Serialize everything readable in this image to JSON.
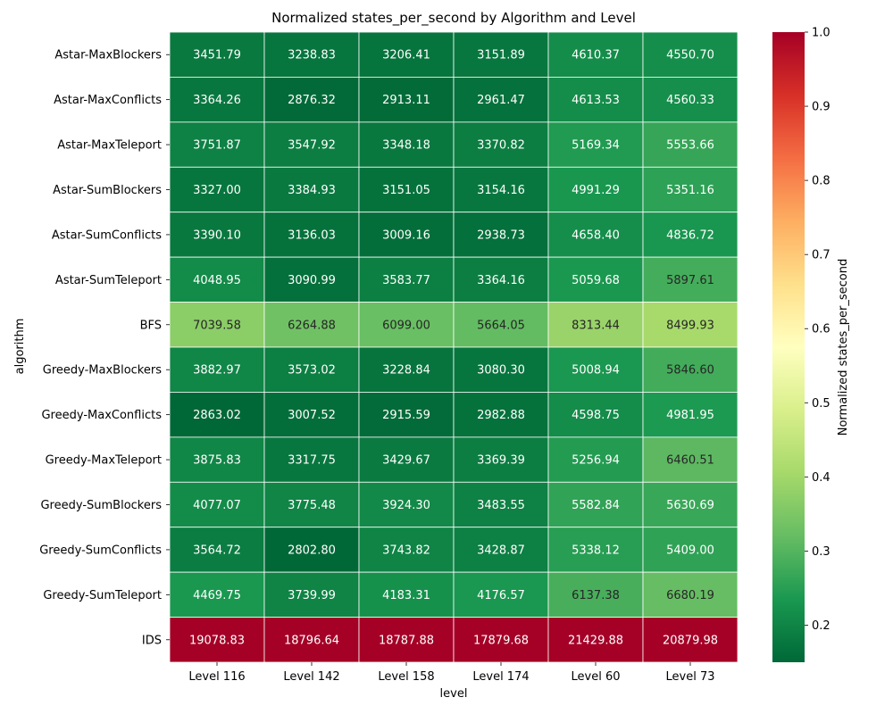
{
  "chart_data": {
    "type": "heatmap",
    "title": "Normalized states_per_second by Algorithm and Level",
    "xlabel": "level",
    "ylabel": "algorithm",
    "x": [
      "Level 116",
      "Level 142",
      "Level 158",
      "Level 174",
      "Level 60",
      "Level 73"
    ],
    "y": [
      "Astar-MaxBlockers",
      "Astar-MaxConflicts",
      "Astar-MaxTeleport",
      "Astar-SumBlockers",
      "Astar-SumConflicts",
      "Astar-SumTeleport",
      "BFS",
      "Greedy-MaxBlockers",
      "Greedy-MaxConflicts",
      "Greedy-MaxTeleport",
      "Greedy-SumBlockers",
      "Greedy-SumConflicts",
      "Greedy-SumTeleport",
      "IDS"
    ],
    "values": [
      [
        3451.79,
        3238.83,
        3206.41,
        3151.89,
        4610.37,
        4550.7
      ],
      [
        3364.26,
        2876.32,
        2913.11,
        2961.47,
        4613.53,
        4560.33
      ],
      [
        3751.87,
        3547.92,
        3348.18,
        3370.82,
        5169.34,
        5553.66
      ],
      [
        3327.0,
        3384.93,
        3151.05,
        3154.16,
        4991.29,
        5351.16
      ],
      [
        3390.1,
        3136.03,
        3009.16,
        2938.73,
        4658.4,
        4836.72
      ],
      [
        4048.95,
        3090.99,
        3583.77,
        3364.16,
        5059.68,
        5897.61
      ],
      [
        7039.58,
        6264.88,
        6099.0,
        5664.05,
        8313.44,
        8499.93
      ],
      [
        3882.97,
        3573.02,
        3228.84,
        3080.3,
        5008.94,
        5846.6
      ],
      [
        2863.02,
        3007.52,
        2915.59,
        2982.88,
        4598.75,
        4981.95
      ],
      [
        3875.83,
        3317.75,
        3429.67,
        3369.39,
        5256.94,
        6460.51
      ],
      [
        4077.07,
        3775.48,
        3924.3,
        3483.55,
        5582.84,
        5630.69
      ],
      [
        3564.72,
        2802.8,
        3743.82,
        3428.87,
        5338.12,
        5409.0
      ],
      [
        4469.75,
        3739.99,
        4183.31,
        4176.57,
        6137.38,
        6680.19
      ],
      [
        19078.83,
        18796.64,
        18787.88,
        17879.68,
        21429.88,
        20879.98
      ]
    ],
    "colorbar": {
      "label": "Normalized states_per_second",
      "ticks": [
        "0.2",
        "0.3",
        "0.4",
        "0.5",
        "0.6",
        "0.7",
        "0.8",
        "0.9",
        "1.0"
      ],
      "colormap": "RdYlGn_r",
      "min": 0.15,
      "max": 1.0
    }
  }
}
